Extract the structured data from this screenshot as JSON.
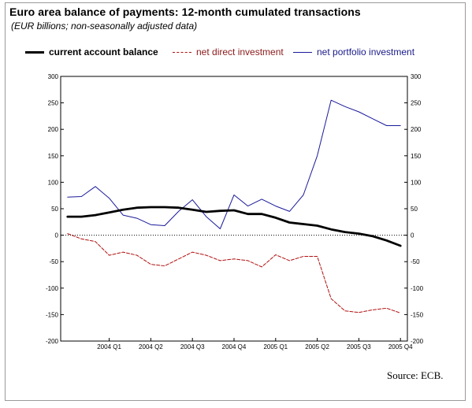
{
  "title": "Euro area balance of payments: 12-month cumulated transactions",
  "subtitle": "(EUR billions; non-seasonally adjusted data)",
  "source": "Source: ECB.",
  "legend": {
    "current_account": "current account balance",
    "direct_investment": "net direct investment",
    "portfolio_investment": "net portfolio investment"
  },
  "chart_data": {
    "type": "line",
    "ylim": [
      -200,
      300
    ],
    "yticks": [
      -200,
      -150,
      -100,
      -50,
      0,
      50,
      100,
      150,
      200,
      250,
      300
    ],
    "grid": false,
    "zero_line": "dotted",
    "legend_position": "top",
    "x_tick_labels": [
      "2004 Q1",
      "2004 Q2",
      "2004 Q3",
      "2004 Q4",
      "2005 Q1",
      "2005 Q2",
      "2005 Q3",
      "2005 Q4"
    ],
    "x_tick_index": [
      3,
      6,
      9,
      12,
      15,
      18,
      21,
      24
    ],
    "point_count": 25,
    "series": [
      {
        "name": "current account balance",
        "color": "#000000",
        "style": "solid-bold",
        "values": [
          35,
          35,
          38,
          43,
          48,
          52,
          53,
          53,
          52,
          48,
          44,
          46,
          47,
          40,
          40,
          33,
          24,
          21,
          18,
          11,
          6,
          3,
          -2,
          -10,
          -20
        ]
      },
      {
        "name": "net direct investment",
        "color": "#b01010",
        "style": "dashed",
        "values": [
          3,
          -7,
          -12,
          -38,
          -32,
          -38,
          -55,
          -58,
          -45,
          -32,
          -38,
          -48,
          -45,
          -48,
          -60,
          -37,
          -48,
          -40,
          -40,
          -120,
          -143,
          -146,
          -141,
          -138,
          -147
        ]
      },
      {
        "name": "net portfolio investment",
        "color": "#1a1a9a",
        "style": "solid",
        "values": [
          72,
          73,
          92,
          70,
          38,
          32,
          20,
          18,
          45,
          67,
          35,
          12,
          76,
          55,
          68,
          55,
          45,
          76,
          150,
          255,
          243,
          233,
          220,
          207,
          207
        ]
      }
    ]
  }
}
